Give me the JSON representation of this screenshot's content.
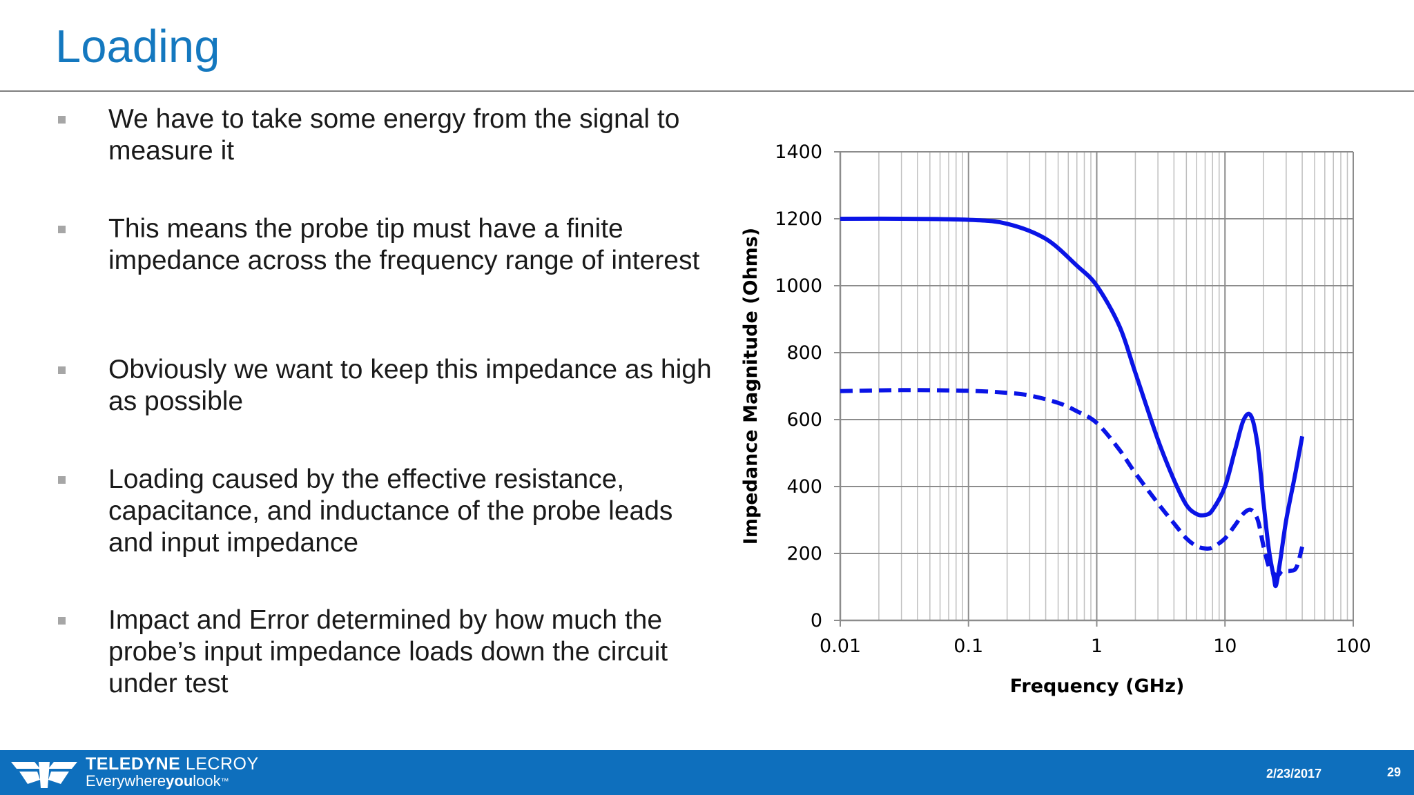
{
  "slide": {
    "title": "Loading",
    "bullets": [
      "We have to take some energy from the signal to measure it",
      "This means the probe tip must have a finite impedance across the frequency range of interest",
      "Obviously we want to keep this impedance as high as possible",
      "Loading caused by the effective resistance, capacitance, and inductance of the probe leads and input impedance",
      "Impact and Error determined by how much the probe’s input impedance loads down the circuit under test"
    ]
  },
  "chart_data": {
    "type": "line",
    "title": "",
    "xlabel": "Frequency (GHz)",
    "ylabel": "Impedance Magnitude (Ohms)",
    "x_scale": "log",
    "xlim": [
      0.01,
      100
    ],
    "ylim": [
      0,
      1400
    ],
    "x_ticks": [
      "0.01",
      "0.1",
      "1",
      "10",
      "100"
    ],
    "y_ticks": [
      "0",
      "200",
      "400",
      "600",
      "800",
      "1000",
      "1200",
      "1400"
    ],
    "grid": true,
    "legend": "none",
    "series": [
      {
        "style": "solid",
        "color": "#0a14e6",
        "x": [
          0.01,
          0.03,
          0.1,
          0.2,
          0.4,
          0.7,
          1.0,
          1.5,
          2.0,
          3.0,
          4.0,
          5.0,
          6.0,
          7.0,
          8.0,
          10.0,
          12.0,
          14.0,
          16.0,
          18.0,
          20.0,
          22.0,
          24.0,
          25.0,
          27.0,
          30.0,
          35.0,
          40.0
        ],
        "y": [
          1200,
          1200,
          1197,
          1185,
          1140,
          1060,
          1000,
          880,
          740,
          540,
          420,
          345,
          318,
          315,
          330,
          400,
          510,
          600,
          610,
          520,
          350,
          210,
          130,
          105,
          180,
          300,
          430,
          550
        ]
      },
      {
        "style": "dashed",
        "color": "#0a14e6",
        "x": [
          0.01,
          0.03,
          0.1,
          0.2,
          0.3,
          0.5,
          0.7,
          1.0,
          1.5,
          2.0,
          3.0,
          4.0,
          5.0,
          6.0,
          7.0,
          8.0,
          10.0,
          12.0,
          14.0,
          16.0,
          18.0,
          20.0,
          22.0,
          24.0,
          26.0,
          28.0,
          32.0,
          36.0,
          40.0
        ],
        "y": [
          685,
          688,
          686,
          680,
          672,
          650,
          625,
          590,
          510,
          440,
          350,
          290,
          245,
          222,
          215,
          218,
          245,
          285,
          320,
          330,
          300,
          220,
          160,
          140,
          135,
          148,
          148,
          158,
          220
        ]
      }
    ]
  },
  "footer": {
    "brand_bold": "TELEDYNE",
    "brand_light": "LECROY",
    "tagline_a": "Everywhere",
    "tagline_b": "you",
    "tagline_c": "look",
    "tagline_tm": "™",
    "date": "2/23/2017",
    "page": "29"
  },
  "colors": {
    "title": "#1478bf",
    "footer": "#0e6fbd",
    "series": "#0a14e6"
  },
  "icons": {
    "bullet": "gray-square-bullet",
    "logo": "teledyne-lecroy-arrow-logo"
  }
}
